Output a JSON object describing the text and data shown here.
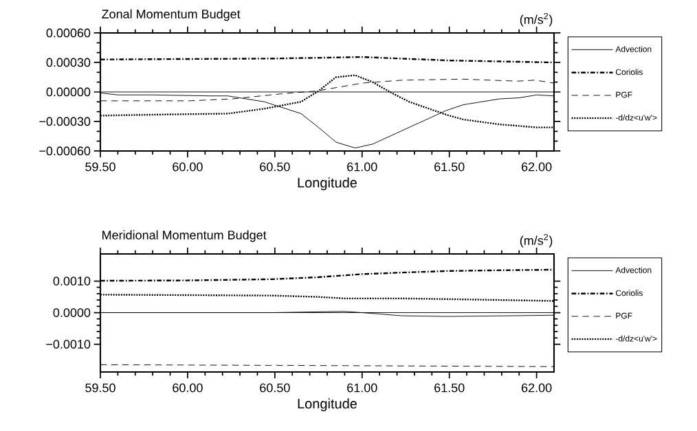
{
  "chart_data": [
    {
      "type": "line",
      "title": "Zonal Momentum Budget",
      "xlabel": "Longitude",
      "annotations": [
        "(m/s$^{2}$)"
      ],
      "legend": "right",
      "xlim": [
        59.5,
        62.1
      ],
      "ylim": [
        -0.0006,
        0.0006
      ],
      "xticks": [
        {
          "value": 59.5,
          "label": "59.50"
        },
        {
          "value": 60.0,
          "label": "60.00"
        },
        {
          "value": 60.5,
          "label": "60.50"
        },
        {
          "value": 61.0,
          "label": "61.00"
        },
        {
          "value": 61.5,
          "label": "61.50"
        },
        {
          "value": 62.0,
          "label": "62.00"
        }
      ],
      "yticks": [
        {
          "value": 0.0006,
          "label": "0.00060"
        },
        {
          "value": 0.0003,
          "label": "0.00030"
        },
        {
          "value": 0,
          "label": "0.00000"
        },
        {
          "value": -0.0003,
          "label": "−0.00030"
        },
        {
          "value": -0.0006,
          "label": "−0.00060"
        }
      ],
      "ref_lines": [
        {
          "axis": "y",
          "value": 0,
          "color": "#000000",
          "line_style": "solid"
        }
      ],
      "series": [
        {
          "name": "Advection",
          "color": "#000000",
          "line_style": "solid",
          "x": [
            59.5,
            59.6,
            59.8,
            60.13,
            60.23,
            60.44,
            60.65,
            60.75,
            60.85,
            60.96,
            61.06,
            61.27,
            61.48,
            61.58,
            61.79,
            61.9,
            62.0,
            62.1
          ],
          "values": [
            -1e-05,
            -3e-05,
            -3e-05,
            -4e-05,
            -4e-05,
            -0.0001,
            -0.00022,
            -0.00036,
            -0.00051,
            -0.00057,
            -0.00053,
            -0.00036,
            -0.00019,
            -0.00013,
            -7e-05,
            -6e-05,
            -3e-05,
            -4e-05
          ]
        },
        {
          "name": "Coriolis",
          "color": "#000000",
          "line_style": "dashdot",
          "x": [
            59.5,
            60.0,
            60.5,
            61.0,
            61.5,
            62.1
          ],
          "values": [
            0.00033,
            0.000335,
            0.00034,
            0.000355,
            0.00032,
            0.0003
          ]
        },
        {
          "name": "PGF",
          "color": "#000000",
          "line_style": "dashed",
          "x": [
            59.5,
            60.01,
            60.26,
            60.53,
            60.74,
            61.0,
            61.23,
            61.58,
            61.89,
            61.99,
            62.1
          ],
          "values": [
            -9e-05,
            -9e-05,
            -7e-05,
            -2e-05,
            1e-05,
            9e-05,
            0.00012,
            0.00013,
            0.00011,
            0.00012,
            9e-05
          ]
        },
        {
          "name": "-d/dz<u'w'>",
          "color": "#000000",
          "line_style": "dotted",
          "x": [
            59.5,
            59.84,
            60.23,
            60.44,
            60.65,
            60.75,
            60.85,
            60.96,
            61.06,
            61.17,
            61.27,
            61.48,
            61.58,
            61.79,
            62.0,
            62.1
          ],
          "values": [
            -0.00024,
            -0.00023,
            -0.00022,
            -0.00017,
            -0.0001,
            1e-05,
            0.00015,
            0.00017,
            0.0001,
            -1e-05,
            -0.0001,
            -0.00023,
            -0.00028,
            -0.00033,
            -0.00036,
            -0.00036
          ]
        }
      ]
    },
    {
      "type": "line",
      "title": "Meridional Momentum Budget",
      "xlabel": "Longitude",
      "annotations": [
        "(m/s$^{2}$)"
      ],
      "legend": "right",
      "xlim": [
        59.5,
        62.1
      ],
      "ylim": [
        -0.00188,
        0.00186
      ],
      "xticks": [
        {
          "value": 59.5,
          "label": "59.50"
        },
        {
          "value": 60.0,
          "label": "60.00"
        },
        {
          "value": 60.5,
          "label": "60.50"
        },
        {
          "value": 61.0,
          "label": "61.00"
        },
        {
          "value": 61.5,
          "label": "61.50"
        },
        {
          "value": 62.0,
          "label": "62.00"
        }
      ],
      "yticks": [
        {
          "value": 0.001,
          "label": "0.0010"
        },
        {
          "value": 0,
          "label": "0.0000"
        },
        {
          "value": -0.001,
          "label": "−0.0010"
        }
      ],
      "ref_lines": [
        {
          "axis": "y",
          "value": 0,
          "color": "#000000",
          "line_style": "solid"
        }
      ],
      "series": [
        {
          "name": "Advection",
          "color": "#000000",
          "line_style": "solid",
          "x": [
            59.5,
            60.49,
            60.9,
            61.0,
            61.23,
            61.49,
            61.84,
            62.1
          ],
          "values": [
            0.0,
            0.0,
            4e-05,
            0.0,
            -0.0001,
            -0.00012,
            -0.0001,
            -8e-05
          ]
        },
        {
          "name": "Coriolis",
          "color": "#000000",
          "line_style": "dashdot",
          "x": [
            59.5,
            60.0,
            60.49,
            60.74,
            61.0,
            61.23,
            61.49,
            61.75,
            62.1
          ],
          "values": [
            0.00101,
            0.00102,
            0.00106,
            0.00112,
            0.00122,
            0.00127,
            0.00132,
            0.00134,
            0.00136
          ]
        },
        {
          "name": "PGF",
          "color": "#000000",
          "line_style": "dashed",
          "x": [
            59.5,
            60.9,
            62.1
          ],
          "values": [
            -0.00165,
            -0.00168,
            -0.00171
          ]
        },
        {
          "name": "-d/dz<u'w'>",
          "color": "#000000",
          "line_style": "dotted",
          "x": [
            59.5,
            60.49,
            60.74,
            60.9,
            61.23,
            61.58,
            62.1
          ],
          "values": [
            0.00057,
            0.00054,
            0.0005,
            0.00045,
            0.00045,
            0.00042,
            0.00037
          ]
        }
      ]
    }
  ]
}
